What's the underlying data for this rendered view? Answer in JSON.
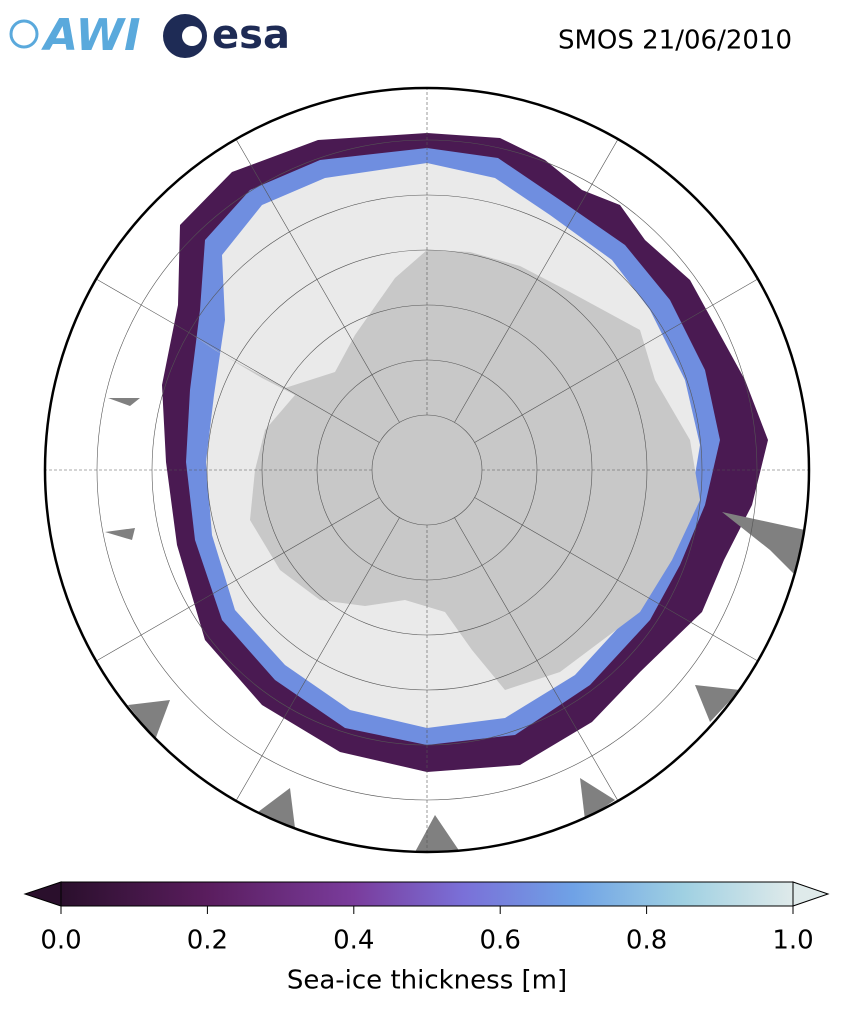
{
  "header": {
    "logo_left": "AWI",
    "logo_right": "esa",
    "title": "SMOS 21/06/2010"
  },
  "colorbar": {
    "label": "Sea-ice thickness [m]",
    "clim": [
      0,
      1
    ],
    "ticks": [
      {
        "value": 0,
        "label": "0.0"
      },
      {
        "value": 0.2,
        "label": "0.2"
      },
      {
        "value": 0.4,
        "label": "0.4"
      },
      {
        "value": 0.6,
        "label": "0.6"
      },
      {
        "value": 0.8,
        "label": "0.8"
      },
      {
        "value": 1,
        "label": "1.0"
      }
    ]
  }
}
